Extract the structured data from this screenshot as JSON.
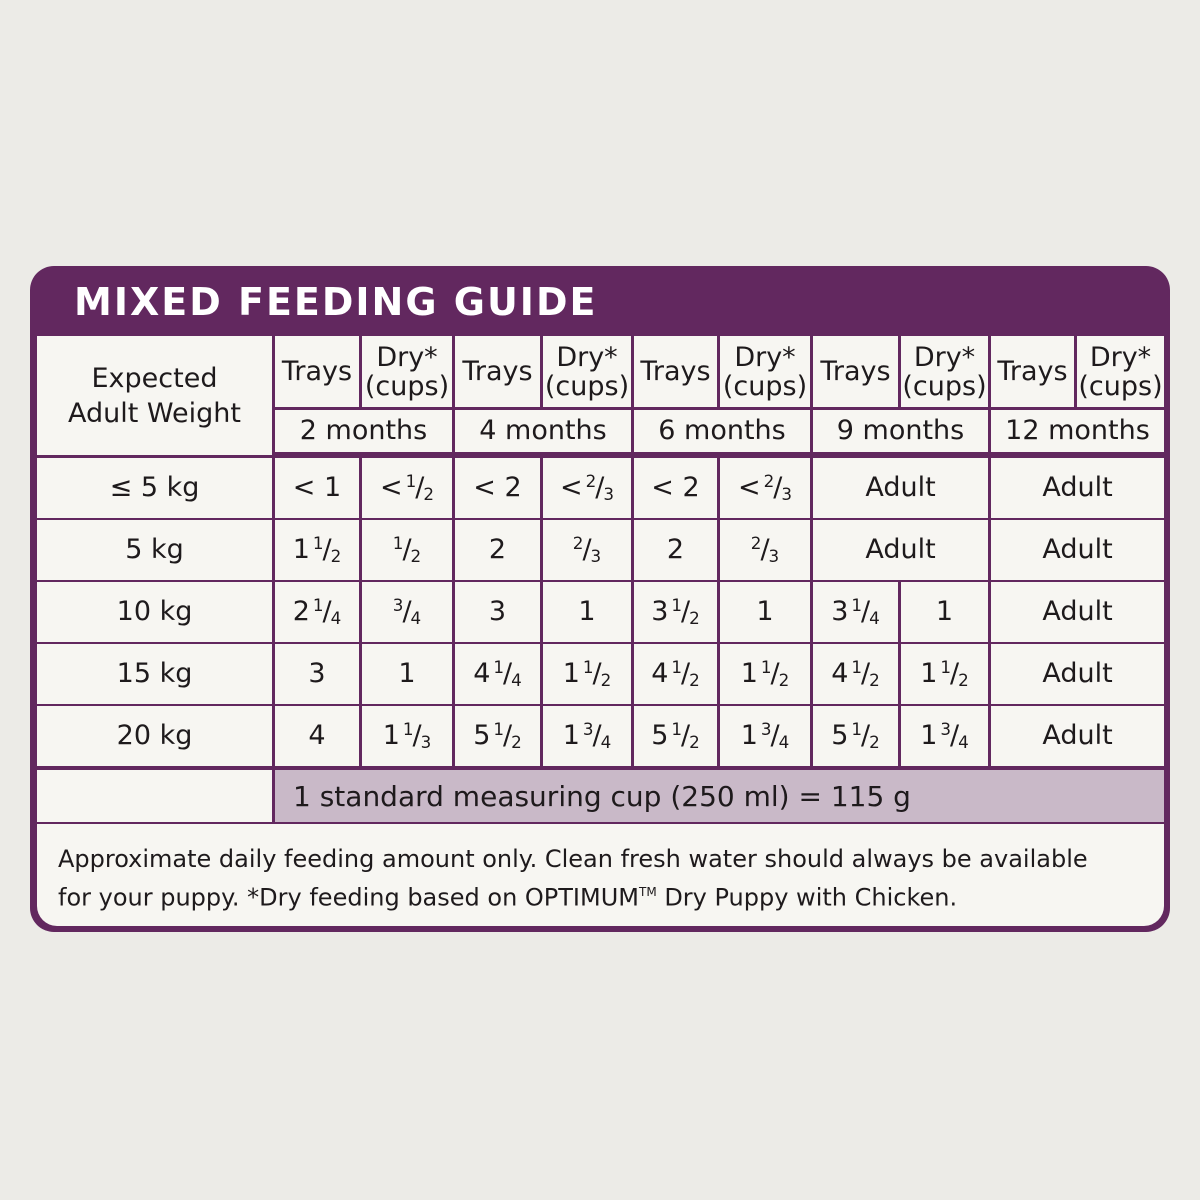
{
  "title": "MIXED FEEDING GUIDE",
  "weight_header": [
    "Expected",
    "Adult Weight"
  ],
  "subcolumns": [
    {
      "trays_label": "Trays",
      "dry_label": [
        "Dry*",
        "(cups)"
      ]
    },
    {
      "trays_label": "Trays",
      "dry_label": [
        "Dry*",
        "(cups)"
      ]
    },
    {
      "trays_label": "Trays",
      "dry_label": [
        "Dry*",
        "(cups)"
      ]
    },
    {
      "trays_label": "Trays",
      "dry_label": [
        "Dry*",
        "(cups)"
      ]
    },
    {
      "trays_label": "Trays",
      "dry_label": [
        "Dry*",
        "(cups)"
      ]
    }
  ],
  "ages": [
    "2 months",
    "4 months",
    "6 months",
    "9 months",
    "12 months"
  ],
  "rows": [
    {
      "weight": "≤ 5 kg",
      "cells": [
        "< 1",
        "< 1/2",
        "< 2",
        "< 2/3",
        "< 2",
        "< 2/3",
        "Adult",
        "Adult"
      ]
    },
    {
      "weight": "5 kg",
      "cells": [
        "1 1/2",
        "1/2",
        "2",
        "2/3",
        "2",
        "2/3",
        "Adult",
        "Adult"
      ]
    },
    {
      "weight": "10 kg",
      "cells": [
        "2 1/4",
        "3/4",
        "3",
        "1",
        "3 1/2",
        "1",
        "3 1/4",
        "1",
        "Adult"
      ]
    },
    {
      "weight": "15 kg",
      "cells": [
        "3",
        "1",
        "4 1/4",
        "1 1/2",
        "4 1/2",
        "1 1/2",
        "4 1/2",
        "1 1/2",
        "Adult"
      ]
    },
    {
      "weight": "20 kg",
      "cells": [
        "4",
        "1 1/3",
        "5 1/2",
        "1 3/4",
        "5 1/2",
        "1 3/4",
        "5 1/2",
        "1 3/4",
        "Adult"
      ]
    }
  ],
  "measure_note": "1 standard measuring cup (250 ml) = 115 g",
  "footnote": {
    "line1": "Approximate daily feeding amount only. Clean fresh water should always be available",
    "line2_before": "for your puppy. *Dry feeding based on OPTIMUM",
    "trademark": "TM",
    "line2_after": " Dry Puppy with Chicken."
  },
  "colors": {
    "background": "#ecebe7",
    "brand_purple": "#62285f",
    "cell": "#f7f6f2",
    "measure_band": "#c9b9c8"
  }
}
